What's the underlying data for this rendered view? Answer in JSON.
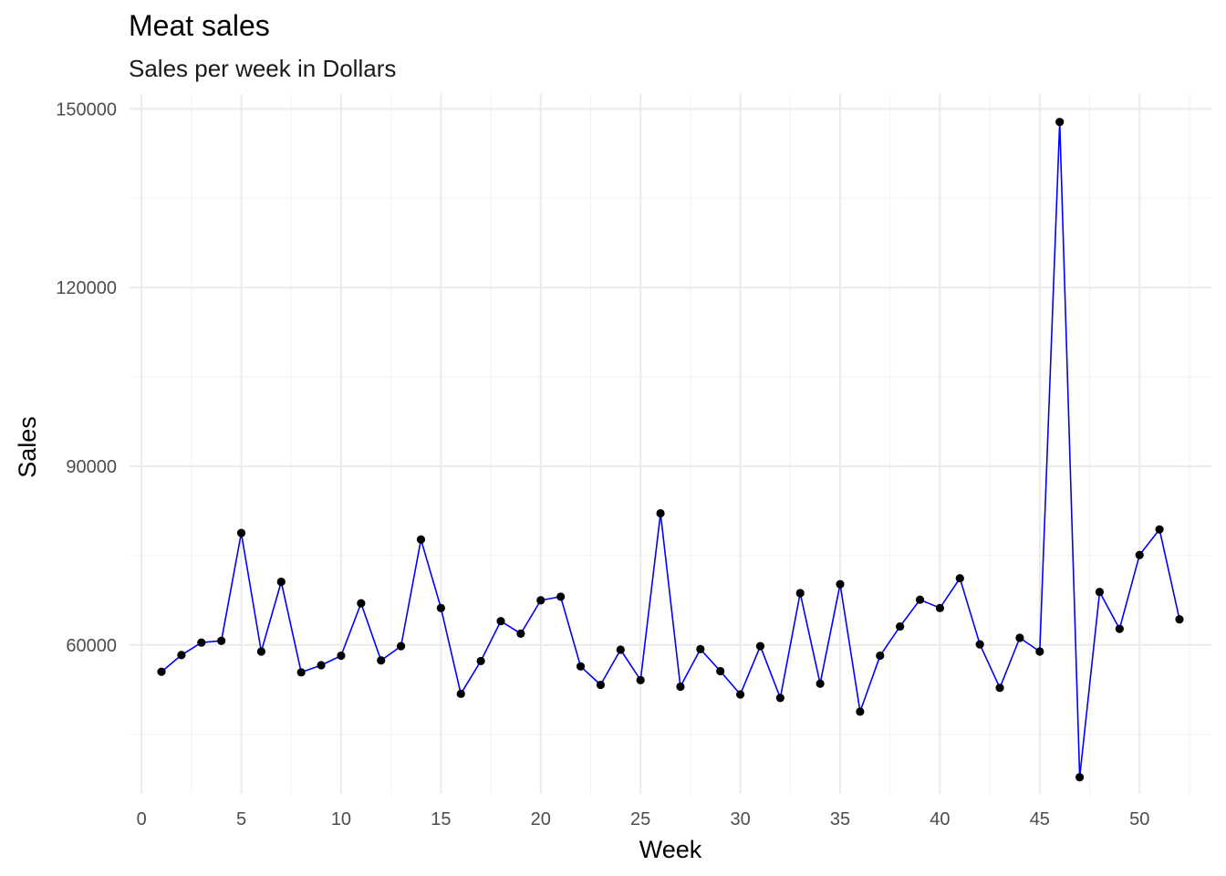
{
  "chart_data": {
    "type": "line",
    "title": "Meat sales",
    "subtitle": "Sales per week in Dollars",
    "xlabel": "Week",
    "ylabel": "Sales",
    "xlim": [
      -0.6,
      53.6
    ],
    "ylim": [
      35000,
      152500
    ],
    "x_ticks": [
      0,
      5,
      10,
      15,
      20,
      25,
      30,
      35,
      40,
      45,
      50
    ],
    "y_ticks": [
      60000,
      90000,
      120000,
      150000
    ],
    "x_tick_labels": [
      "0",
      "5",
      "10",
      "15",
      "20",
      "25",
      "30",
      "35",
      "40",
      "45",
      "50"
    ],
    "y_tick_labels": [
      "60000",
      "90000",
      "120000",
      "150000"
    ],
    "grid": true,
    "line_color": "#0000ff",
    "point_color": "#000000",
    "series": [
      {
        "x": [
          1,
          2,
          3,
          4,
          5,
          6,
          7,
          8,
          9,
          10,
          11,
          12,
          13,
          14,
          15,
          16,
          17,
          18,
          19,
          20,
          21,
          22,
          23,
          24,
          25,
          26,
          27,
          28,
          29,
          30,
          31,
          32,
          33,
          34,
          35,
          36,
          37,
          38,
          39,
          40,
          41,
          42,
          43,
          44,
          45,
          46,
          47,
          48,
          49,
          50,
          51,
          52
        ],
        "values": [
          55500,
          58300,
          60400,
          60700,
          78800,
          58900,
          70600,
          55400,
          56600,
          58200,
          67000,
          57400,
          59800,
          77700,
          66200,
          51800,
          57300,
          64000,
          61900,
          67500,
          68100,
          56400,
          53300,
          59200,
          54100,
          82100,
          53000,
          59300,
          55600,
          51700,
          59800,
          51100,
          68700,
          53500,
          70200,
          48800,
          58200,
          63100,
          67600,
          66200,
          71200,
          60100,
          52800,
          61200,
          58900,
          147800,
          37800,
          68900,
          62700,
          75100,
          79400,
          64300
        ]
      }
    ]
  }
}
